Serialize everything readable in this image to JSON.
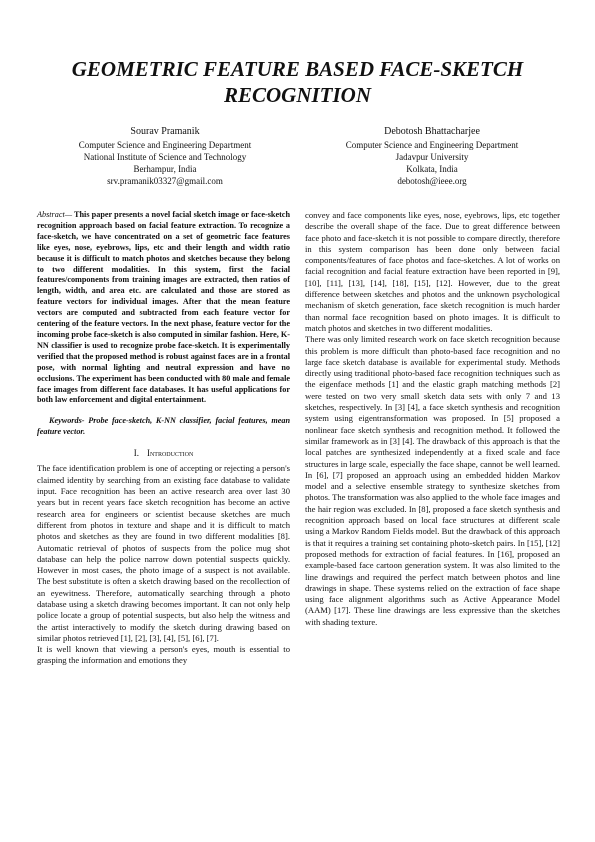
{
  "header": {
    "title": "GEOMETRIC FEATURE BASED FACE-SKETCH RECOGNITION"
  },
  "authors": [
    {
      "name": "Sourav Pramanik",
      "lines": [
        "Computer Science and Engineering Department",
        "National Institute of Science and Technology",
        "Berhampur, India",
        "srv.pramanik03327@gmail.com"
      ]
    },
    {
      "name": "Debotosh Bhattacharjee",
      "lines": [
        "Computer Science and Engineering Department",
        "Jadavpur University",
        "Kolkata, India",
        "debotosh@ieee.org"
      ]
    }
  ],
  "abstract": {
    "label": "Abstract—",
    "text": "This paper presents a novel facial sketch image or face-sketch recognition approach based on facial feature extraction. To recognize a face-sketch, we have concentrated on a set of geometric face features like eyes, nose, eyebrows, lips, etc and their length and width ratio because it is difficult to match photos and sketches because they belong to two different modalities. In this system, first the facial features/components from training images are extracted, then ratios of length, width, and area etc. are calculated and those are stored as feature vectors for individual images. After that the mean feature vectors are computed and subtracted from each feature vector for centering of the feature vectors. In the next phase, feature vector for the incoming probe face-sketch is also computed in similar fashion. Here, K-NN classifier is used to recognize probe face-sketch. It is experimentally verified that the proposed method is robust against faces are in a frontal pose, with normal lighting and neutral expression and have no occlusions. The experiment has been conducted with 80 male and female face images from different face databases. It has useful applications for both law enforcement and digital entertainment."
  },
  "keywords": {
    "label": "Keywords-",
    "text": "Probe face-sketch, K-NN classifier, facial features, mean feature vector."
  },
  "section": {
    "number": "I.",
    "title": "Introduction"
  },
  "left_paragraphs": [
    "The face identification problem is one of accepting or rejecting a person's claimed identity by searching from an existing face database to validate input. Face recognition has been an active research area over last 30 years but in recent years face sketch recognition has become an active research area for engineers or scientist because sketches are much different from photos in texture and shape and it is difficult to match photos and sketches as they are found in two different modalities [8]. Automatic retrieval of photos of suspects from the police mug shot database can help the police narrow down potential suspects quickly. However in most cases, the photo image of a suspect is not available. The best substitute is often a sketch drawing based on the recollection of an eyewitness. Therefore, automatically searching through a photo database using a sketch drawing becomes important. It can not only help police locate a group of potential suspects, but also help the witness and the artist interactively to modify the sketch during drawing based on similar photos retrieved [1], [2], [3], [4], [5], [6], [7].",
    "It is well known that viewing a person's eyes, mouth is essential to grasping the information and emotions they"
  ],
  "right_paragraphs": [
    "convey and face components like eyes, nose, eyebrows, lips, etc together describe the overall shape of the face. Due to great difference between face photo and face-sketch it is not possible to compare directly, therefore in this system comparison has been done only between facial components/features of face photos and face-sketches. A lot of works on facial recognition and facial feature extraction have been reported in [9], [10], [11], [13], [14], [18], [15], [12]. However, due to the great difference between sketches and photos and the unknown psychological mechanism of sketch generation, face sketch recognition is much harder than normal face recognition based on photo images. It is difficult to match photos and sketches in two different modalities.",
    "There was only limited research work on face sketch recognition because this problem is more difficult than photo-based face recognition and no large face sketch database is available for experimental study. Methods directly using traditional photo-based face recognition techniques such as the eigenface methods [1] and the elastic graph matching methods [2] were tested on two very small sketch data sets with only 7 and 13 sketches, respectively. In [3] [4], a face sketch synthesis and recognition system using eigentransformation was proposed. In [5] proposed a nonlinear face sketch synthesis and recognition method. It followed the similar framework as in [3] [4]. The drawback of this approach is that the local patches are synthesized independently at a fixed scale and face structures in large scale, especially the face shape, cannot be well learned. In [6], [7] proposed an approach using an embedded hidden Markov model and a selective ensemble strategy to synthesize sketches from photos. The transformation was also applied to the whole face images and the hair region was excluded. In [8], proposed a face sketch synthesis and recognition approach based on local face structures at different scale using a Markov Random Fields model. But the drawback of this approach is that it requires a training set containing photo-sketch pairs. In [15], [12] proposed methods for extraction of facial features. In [16], proposed an example-based face cartoon generation system. It was also limited to the line drawings and required the perfect match between photos and line drawings in shape. These systems relied on the extraction of face shape using face alignment algorithms such as Active Appearance Model (AAM) [17]. These line drawings are less expressive than the sketches with shading texture."
  ]
}
